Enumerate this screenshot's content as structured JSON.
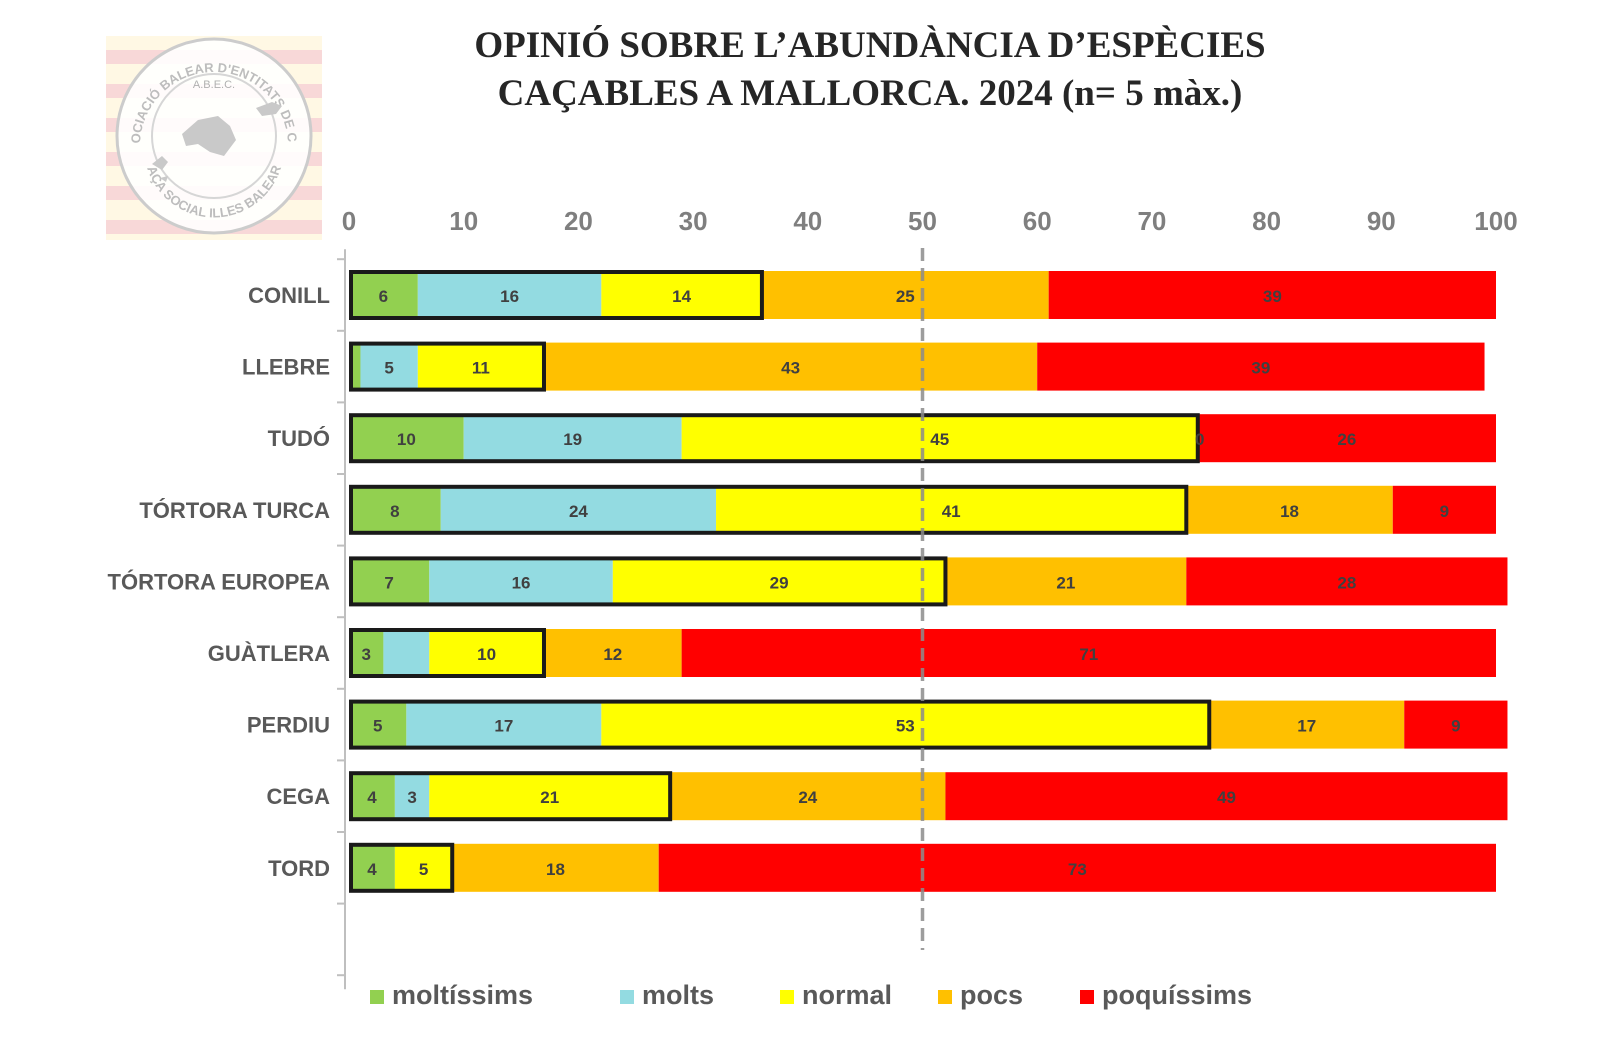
{
  "chart_data": {
    "type": "bar",
    "orientation": "horizontal",
    "stacked": true,
    "title_lines": [
      "OPINIÓ SOBRE L’ABUNDÀNCIA D’ESPÈCIES",
      "CAÇABLES A MALLORCA. 2024 (n= 5 màx.)"
    ],
    "xlim": [
      0,
      100
    ],
    "x_ticks": [
      0,
      10,
      20,
      30,
      40,
      50,
      60,
      70,
      80,
      90,
      100
    ],
    "reference_line": 50,
    "legend_position": "bottom",
    "categories": [
      "CONILL",
      "LLEBRE",
      "TUDÓ",
      "TÓRTORA TURCA",
      "TÓRTORA EUROPEA",
      "GUÀTLERA",
      "PERDIU",
      "CEGA",
      "TORD"
    ],
    "series": [
      {
        "name": "moltíssims",
        "color": "#92d050",
        "values": [
          6,
          1,
          10,
          8,
          7,
          3,
          5,
          4,
          4
        ]
      },
      {
        "name": "molts",
        "color": "#93dbe1",
        "values": [
          16,
          5,
          19,
          24,
          16,
          4,
          17,
          3,
          0
        ]
      },
      {
        "name": "normal",
        "color": "#ffff00",
        "values": [
          14,
          11,
          45,
          41,
          29,
          10,
          53,
          21,
          5
        ]
      },
      {
        "name": "pocs",
        "color": "#ffc000",
        "values": [
          25,
          43,
          0,
          18,
          21,
          12,
          17,
          24,
          18
        ]
      },
      {
        "name": "poquíssims",
        "color": "#ff0000",
        "values": [
          39,
          39,
          26,
          9,
          28,
          71,
          9,
          49,
          73
        ]
      }
    ],
    "labels": [
      [
        "6",
        "16",
        "14",
        "25",
        "39"
      ],
      [
        "",
        "5",
        "11",
        "43",
        "39"
      ],
      [
        "10",
        "19",
        "45",
        "0",
        "26"
      ],
      [
        "8",
        "24",
        "41",
        "18",
        "9"
      ],
      [
        "7",
        "16",
        "29",
        "21",
        "28"
      ],
      [
        "3",
        "",
        "10",
        "12",
        "71"
      ],
      [
        "5",
        "17",
        "53",
        "17",
        "9"
      ],
      [
        "4",
        "3",
        "21",
        "24",
        "49"
      ],
      [
        "4",
        "",
        "5",
        "18",
        "73"
      ]
    ],
    "highlight_upto_series": 2
  },
  "logo": {
    "ring_text_top": "ASSOCIACIÓ BALEAR D'ENTITATS DE CAÇA",
    "ring_text_bottom": "CAÇA SOCIAL ILLES BALEARS",
    "center_text": "A.B.E.C."
  }
}
